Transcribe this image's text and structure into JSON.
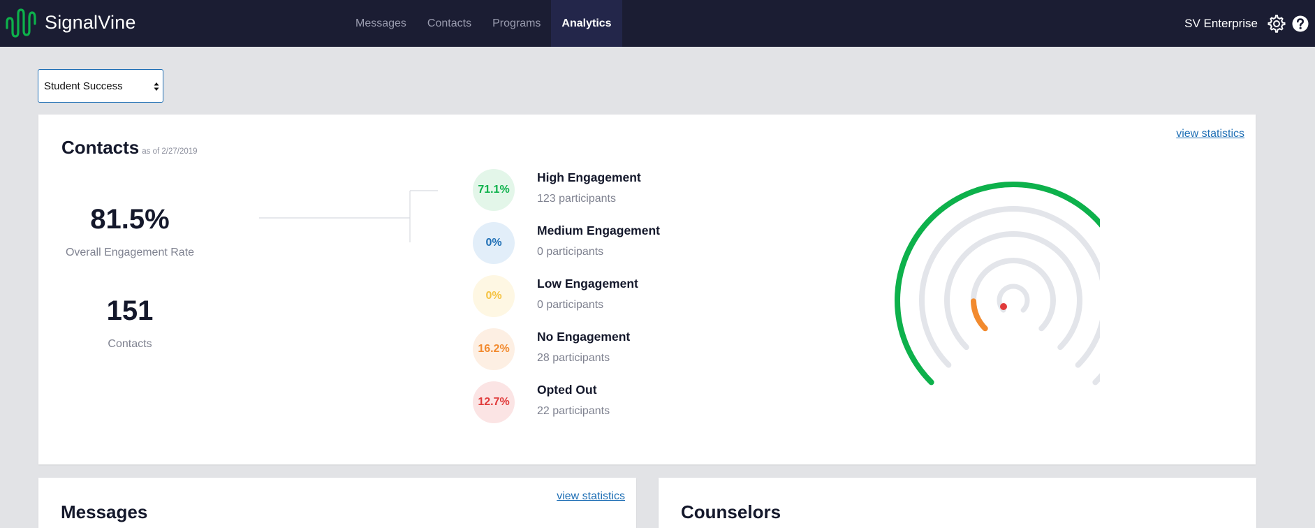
{
  "app": {
    "brand": "SignalVine",
    "org_name": "SV Enterprise"
  },
  "nav": {
    "items": [
      {
        "label": "Messages",
        "active": false
      },
      {
        "label": "Contacts",
        "active": false
      },
      {
        "label": "Programs",
        "active": false
      },
      {
        "label": "Analytics",
        "active": true
      }
    ]
  },
  "icons": {
    "settings": "gear-icon",
    "help": "help-icon",
    "logo": "signal-wave-logo",
    "select_arrows": "up-down-arrows-icon"
  },
  "colors": {
    "topbar": "#1b1d33",
    "brand_green": "#0db14b",
    "link_blue": "#1f6fb5",
    "high": "#0db14b",
    "medium": "#1f6fb5",
    "low": "#f5c342",
    "none": "#f28a2e",
    "opted_out": "#e03a3a"
  },
  "program_select": {
    "value": "Student Success"
  },
  "contacts_card": {
    "title": "Contacts",
    "as_of": "as of 2/27/2019",
    "view_statistics": "view statistics",
    "engagement_rate": "81.5%",
    "engagement_rate_label": "Overall Engagement Rate",
    "contacts_count": "151",
    "contacts_label": "Contacts",
    "segments": [
      {
        "key": "high",
        "percent": "71.1%",
        "name": "High Engagement",
        "count": "123 participants",
        "fraction": 0.711
      },
      {
        "key": "medium",
        "percent": "0%",
        "name": "Medium Engagement",
        "count": "0 participants",
        "fraction": 0
      },
      {
        "key": "low",
        "percent": "0%",
        "name": "Low Engagement",
        "count": "0 participants",
        "fraction": 0
      },
      {
        "key": "none",
        "percent": "16.2%",
        "name": "No Engagement",
        "count": "28 participants",
        "fraction": 0.162
      },
      {
        "key": "opted_out",
        "percent": "12.7%",
        "name": "Opted Out",
        "count": "22 participants",
        "fraction": 0.127
      }
    ]
  },
  "messages_card": {
    "title": "Messages",
    "view_statistics": "view statistics"
  },
  "counselors_card": {
    "title": "Counselors"
  }
}
